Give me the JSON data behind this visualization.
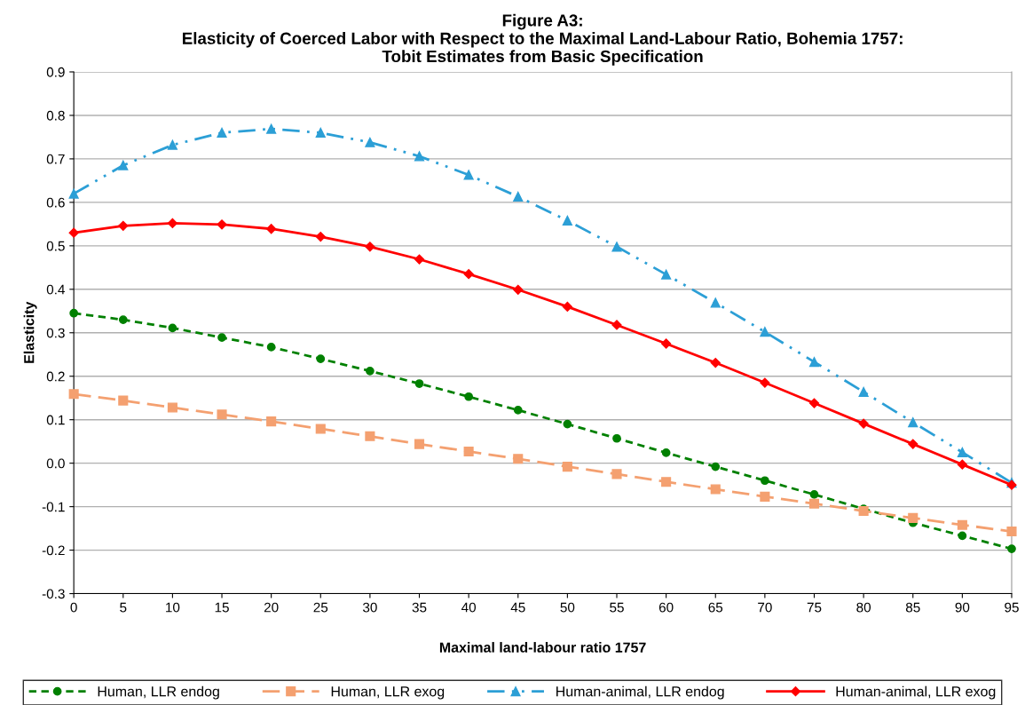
{
  "chart_data": {
    "type": "line",
    "title": "Figure A3:\nElasticity of Coerced Labor with Respect to the Maximal Land-Labour Ratio, Bohemia 1757:\nTobit Estimates from Basic Specification",
    "xlabel": "Maximal land-labour ratio 1757",
    "ylabel": "Elasticity",
    "categories": [
      "0",
      "5",
      "10",
      "15",
      "20",
      "25",
      "30",
      "35",
      "40",
      "45",
      "50",
      "55",
      "60",
      "65",
      "70",
      "75",
      "80",
      "85",
      "90",
      "95"
    ],
    "ylim": [
      -0.3,
      0.9
    ],
    "yticks": [
      {
        "value": -0.3,
        "label": "-0.3"
      },
      {
        "value": -0.2,
        "label": "-0.2"
      },
      {
        "value": -0.1,
        "label": "-0.1"
      },
      {
        "value": 0,
        "label": "0.0"
      },
      {
        "value": 0.1,
        "label": "0.1"
      },
      {
        "value": 0.2,
        "label": "0.2"
      },
      {
        "value": 0.3,
        "label": "0.3"
      },
      {
        "value": 0.4,
        "label": "0.4"
      },
      {
        "value": 0.5,
        "label": "0.5"
      },
      {
        "value": 0.6,
        "label": "0.6"
      },
      {
        "value": 0.7,
        "label": "0.7"
      },
      {
        "value": 0.8,
        "label": "0.8"
      },
      {
        "value": 0.9,
        "label": "0.9"
      }
    ],
    "grid": "y",
    "legend": "bottom",
    "series": [
      {
        "name": "Human, LLR endog",
        "color": "#008000",
        "marker": "circle",
        "line_style": "dashed",
        "values": [
          0.345,
          0.33,
          0.311,
          0.289,
          0.267,
          0.24,
          0.212,
          0.183,
          0.153,
          0.122,
          0.09,
          0.057,
          0.024,
          -0.008,
          -0.04,
          -0.072,
          -0.105,
          -0.137,
          -0.167,
          -0.197
        ]
      },
      {
        "name": "Human, LLR exog",
        "color": "#f4a070",
        "marker": "square",
        "line_style": "longdash",
        "values": [
          0.159,
          0.144,
          0.128,
          0.112,
          0.096,
          0.079,
          0.062,
          0.044,
          0.027,
          0.01,
          -0.008,
          -0.025,
          -0.043,
          -0.06,
          -0.077,
          -0.093,
          -0.11,
          -0.126,
          -0.142,
          -0.157
        ]
      },
      {
        "name": "Human-animal, LLR endog",
        "color": "#2c9fd6",
        "marker": "triangle",
        "line_style": "dashdot",
        "values": [
          0.62,
          0.685,
          0.732,
          0.76,
          0.769,
          0.76,
          0.738,
          0.706,
          0.663,
          0.613,
          0.558,
          0.498,
          0.434,
          0.369,
          0.302,
          0.233,
          0.164,
          0.094,
          0.025,
          -0.045
        ]
      },
      {
        "name": "Human-animal, LLR exog",
        "color": "#ff0000",
        "marker": "diamond",
        "line_style": "solid",
        "values": [
          0.53,
          0.546,
          0.552,
          0.549,
          0.539,
          0.521,
          0.498,
          0.469,
          0.435,
          0.399,
          0.36,
          0.318,
          0.275,
          0.231,
          0.185,
          0.138,
          0.091,
          0.044,
          -0.003,
          -0.05
        ]
      }
    ]
  }
}
